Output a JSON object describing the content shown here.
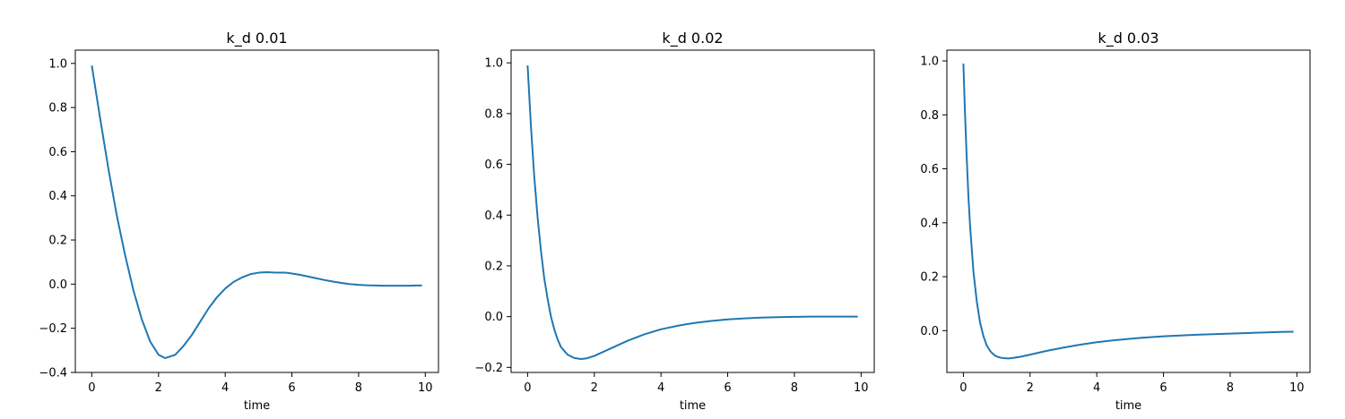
{
  "chart_data": [
    {
      "type": "line",
      "title": "k_d 0.01",
      "xlabel": "time",
      "ylabel": "",
      "xlim": [
        -0.495,
        10.395
      ],
      "ylim": [
        -0.4,
        1.06
      ],
      "xticks": [
        0,
        2,
        4,
        6,
        8,
        10
      ],
      "xtick_labels": [
        "0",
        "2",
        "4",
        "6",
        "8",
        "10"
      ],
      "yticks": [
        -0.4,
        -0.2,
        0.0,
        0.2,
        0.4,
        0.6,
        0.8,
        1.0
      ],
      "ytick_labels": [
        "−0.4",
        "−0.2",
        "0.0",
        "0.2",
        "0.4",
        "0.6",
        "0.8",
        "1.0"
      ],
      "grid": false,
      "series": [
        {
          "color": "#1f77b4",
          "x": [
            0,
            0.25,
            0.5,
            0.75,
            1.0,
            1.25,
            1.5,
            1.75,
            2.0,
            2.2,
            2.5,
            2.75,
            3.0,
            3.25,
            3.5,
            3.75,
            4.0,
            4.25,
            4.5,
            4.75,
            5.0,
            5.25,
            5.5,
            5.8,
            6.0,
            6.25,
            6.5,
            6.75,
            7.0,
            7.25,
            7.5,
            7.75,
            8.0,
            8.25,
            8.5,
            8.75,
            9.0,
            9.25,
            9.5,
            9.75,
            9.9
          ],
          "y": [
            0.99,
            0.75,
            0.52,
            0.31,
            0.13,
            -0.03,
            -0.16,
            -0.26,
            -0.32,
            -0.335,
            -0.32,
            -0.28,
            -0.23,
            -0.17,
            -0.11,
            -0.06,
            -0.02,
            0.01,
            0.03,
            0.045,
            0.052,
            0.054,
            0.052,
            0.052,
            0.048,
            0.042,
            0.034,
            0.026,
            0.018,
            0.011,
            0.005,
            0.0,
            -0.003,
            -0.005,
            -0.006,
            -0.007,
            -0.007,
            -0.007,
            -0.007,
            -0.006,
            -0.006
          ]
        }
      ]
    },
    {
      "type": "line",
      "title": "k_d 0.02",
      "xlabel": "time",
      "ylabel": "",
      "xlim": [
        -0.495,
        10.395
      ],
      "ylim": [
        -0.22,
        1.05
      ],
      "xticks": [
        0,
        2,
        4,
        6,
        8,
        10
      ],
      "xtick_labels": [
        "0",
        "2",
        "4",
        "6",
        "8",
        "10"
      ],
      "yticks": [
        -0.2,
        0.0,
        0.2,
        0.4,
        0.6,
        0.8,
        1.0
      ],
      "ytick_labels": [
        "−0.2",
        "0.0",
        "0.2",
        "0.4",
        "0.6",
        "0.8",
        "1.0"
      ],
      "grid": false,
      "series": [
        {
          "color": "#1f77b4",
          "x": [
            0,
            0.1,
            0.2,
            0.3,
            0.4,
            0.5,
            0.6,
            0.7,
            0.8,
            0.9,
            1.0,
            1.2,
            1.4,
            1.6,
            1.75,
            2.0,
            2.25,
            2.5,
            2.75,
            3.0,
            3.5,
            4.0,
            4.5,
            5.0,
            5.5,
            6.0,
            6.5,
            7.0,
            7.5,
            8.0,
            8.5,
            9.0,
            9.5,
            9.9
          ],
          "y": [
            0.99,
            0.75,
            0.55,
            0.39,
            0.26,
            0.15,
            0.07,
            0.0,
            -0.05,
            -0.09,
            -0.12,
            -0.15,
            -0.163,
            -0.167,
            -0.165,
            -0.155,
            -0.14,
            -0.125,
            -0.11,
            -0.095,
            -0.07,
            -0.05,
            -0.036,
            -0.025,
            -0.017,
            -0.011,
            -0.007,
            -0.004,
            -0.002,
            -0.001,
            0.0,
            0.0,
            0.0,
            0.0
          ]
        }
      ]
    },
    {
      "type": "line",
      "title": "k_d 0.03",
      "xlabel": "time",
      "ylabel": "",
      "xlim": [
        -0.495,
        10.395
      ],
      "ylim": [
        -0.155,
        1.04
      ],
      "xticks": [
        0,
        2,
        4,
        6,
        8,
        10
      ],
      "xtick_labels": [
        "0",
        "2",
        "4",
        "6",
        "8",
        "10"
      ],
      "yticks": [
        0.0,
        0.2,
        0.4,
        0.6,
        0.8,
        1.0
      ],
      "ytick_labels": [
        "0.0",
        "0.2",
        "0.4",
        "0.6",
        "0.8",
        "1.0"
      ],
      "grid": false,
      "series": [
        {
          "color": "#1f77b4",
          "x": [
            0,
            0.05,
            0.1,
            0.15,
            0.2,
            0.3,
            0.4,
            0.5,
            0.6,
            0.7,
            0.8,
            0.9,
            1.0,
            1.1,
            1.2,
            1.35,
            1.5,
            1.75,
            2.0,
            2.5,
            3.0,
            3.5,
            4.0,
            4.5,
            5.0,
            5.5,
            6.0,
            6.5,
            7.0,
            7.5,
            8.0,
            8.5,
            9.0,
            9.5,
            9.9
          ],
          "y": [
            0.99,
            0.8,
            0.64,
            0.5,
            0.39,
            0.22,
            0.11,
            0.03,
            -0.02,
            -0.055,
            -0.075,
            -0.088,
            -0.096,
            -0.1,
            -0.102,
            -0.103,
            -0.101,
            -0.096,
            -0.089,
            -0.075,
            -0.063,
            -0.052,
            -0.043,
            -0.036,
            -0.03,
            -0.025,
            -0.021,
            -0.018,
            -0.015,
            -0.013,
            -0.011,
            -0.009,
            -0.007,
            -0.005,
            -0.004
          ]
        }
      ]
    }
  ]
}
